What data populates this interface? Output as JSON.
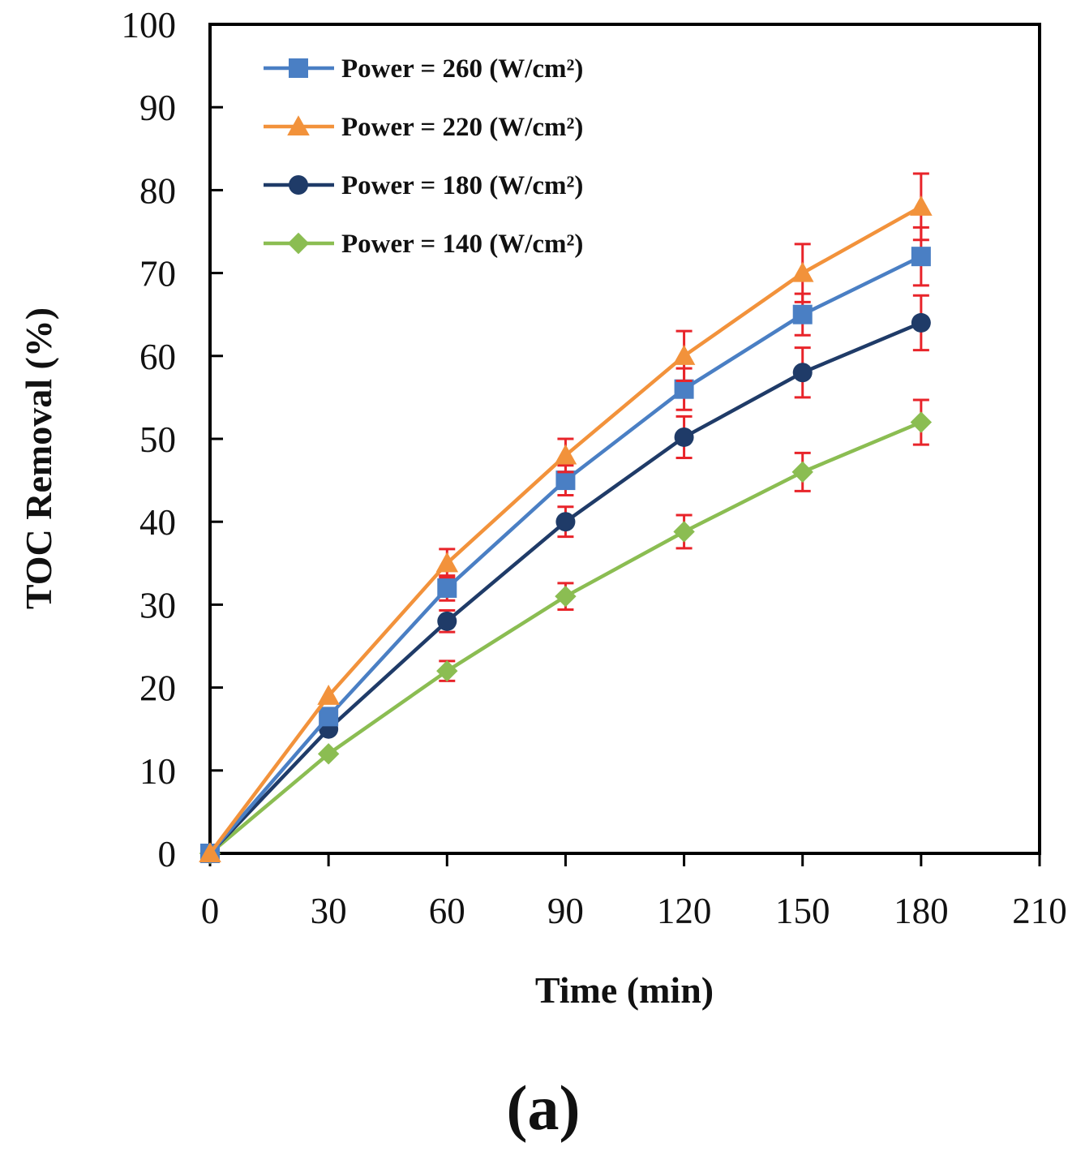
{
  "chart_data": {
    "type": "line",
    "title": "",
    "panel_label": "(a)",
    "xlabel": "Time (min)",
    "ylabel": "TOC Removal (%)",
    "xlim": [
      0,
      210
    ],
    "ylim": [
      0,
      100
    ],
    "xticks": [
      0,
      30,
      60,
      90,
      120,
      150,
      180,
      210
    ],
    "yticks": [
      0,
      10,
      20,
      30,
      40,
      50,
      60,
      70,
      80,
      90,
      100
    ],
    "legend_position": "top-left",
    "grid": false,
    "error_bar_color": "#e8242a",
    "x": [
      0,
      30,
      60,
      90,
      120,
      150,
      180
    ],
    "series": [
      {
        "name": "Power = 260 (W/cm²)",
        "color": "#4a7fc4",
        "marker": "square",
        "values": [
          0,
          16.5,
          32,
          45,
          56,
          65,
          72
        ],
        "errors": [
          0,
          0,
          1.5,
          1.8,
          2.5,
          2.5,
          3.5
        ]
      },
      {
        "name": "Power = 220 (W/cm²)",
        "color": "#f2923b",
        "marker": "triangle",
        "values": [
          0,
          19,
          35,
          48,
          60,
          70,
          78
        ],
        "errors": [
          0,
          0,
          1.7,
          2,
          3,
          3.5,
          4
        ]
      },
      {
        "name": "Power = 180 (W/cm²)",
        "color": "#1f3b68",
        "marker": "circle",
        "values": [
          0,
          15,
          28,
          40,
          50.2,
          58,
          64
        ],
        "errors": [
          0,
          0,
          1.3,
          1.8,
          2.5,
          3,
          3.3
        ]
      },
      {
        "name": "Power = 140 (W/cm²)",
        "color": "#8bbd52",
        "marker": "diamond",
        "values": [
          0,
          12,
          22,
          31,
          38.8,
          46,
          52
        ],
        "errors": [
          0,
          0,
          1.2,
          1.6,
          2,
          2.3,
          2.7
        ]
      }
    ]
  }
}
